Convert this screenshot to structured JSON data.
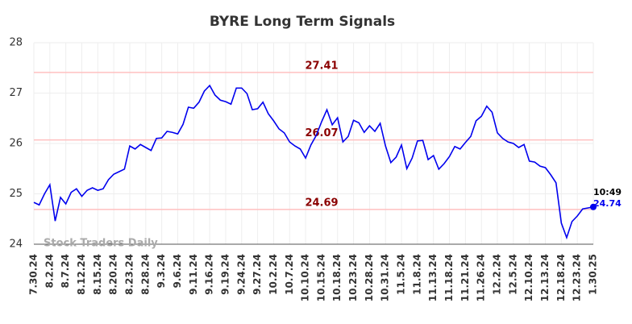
{
  "chart_data": {
    "type": "line",
    "title": "BYRE Long Term Signals",
    "categories": [
      "7.30.24",
      null,
      null,
      "8.2.24",
      null,
      null,
      "8.7.24",
      null,
      null,
      "8.12.24",
      null,
      null,
      "8.15.24",
      null,
      null,
      "8.20.24",
      null,
      null,
      "8.23.24",
      null,
      null,
      "8.28.24",
      null,
      null,
      "9.3.24",
      null,
      null,
      "9.6.24",
      null,
      null,
      "9.11.24",
      null,
      null,
      "9.16.24",
      null,
      null,
      "9.19.24",
      null,
      null,
      "9.24.24",
      null,
      null,
      "9.27.24",
      null,
      null,
      "10.2.24",
      null,
      null,
      "10.7.24",
      null,
      null,
      "10.10.24",
      null,
      null,
      "10.15.24",
      null,
      null,
      "10.18.24",
      null,
      null,
      "10.23.24",
      null,
      null,
      "10.28.24",
      null,
      null,
      "10.31.24",
      null,
      null,
      "11.5.24",
      null,
      null,
      "11.8.24",
      null,
      null,
      "11.13.24",
      null,
      null,
      "11.18.24",
      null,
      null,
      "11.21.24",
      null,
      null,
      "11.26.24",
      null,
      null,
      "12.2.24",
      null,
      null,
      "12.5.24",
      null,
      null,
      "12.10.24",
      null,
      null,
      "12.13.24",
      null,
      null,
      "12.18.24",
      null,
      null,
      "12.23.24",
      null,
      null,
      "1.30.25"
    ],
    "series": [
      {
        "color": "#0000ee",
        "values": [
          24.83,
          24.78,
          25.0,
          25.18,
          24.46,
          24.93,
          24.8,
          25.03,
          25.1,
          24.95,
          25.07,
          25.12,
          25.07,
          25.1,
          25.28,
          25.39,
          25.44,
          25.49,
          25.95,
          25.89,
          25.98,
          25.92,
          25.86,
          26.1,
          26.11,
          26.24,
          26.22,
          26.19,
          26.38,
          26.72,
          26.7,
          26.82,
          27.04,
          27.15,
          26.96,
          26.86,
          26.83,
          26.78,
          27.1,
          27.1,
          26.99,
          26.67,
          26.69,
          26.82,
          26.59,
          26.45,
          26.29,
          26.21,
          26.03,
          25.95,
          25.89,
          25.71,
          25.97,
          26.16,
          26.43,
          26.67,
          26.37,
          26.51,
          26.03,
          26.14,
          26.46,
          26.41,
          26.22,
          26.35,
          26.24,
          26.4,
          25.95,
          25.62,
          25.73,
          25.97,
          25.5,
          25.71,
          26.05,
          26.06,
          25.68,
          25.76,
          25.49,
          25.6,
          25.74,
          25.94,
          25.89,
          26.02,
          26.14,
          26.45,
          26.54,
          26.74,
          26.62,
          26.21,
          26.1,
          26.03,
          26.0,
          25.92,
          25.98,
          25.65,
          25.63,
          25.55,
          25.52,
          25.38,
          25.22,
          24.42,
          24.13,
          24.45,
          24.56,
          24.7,
          24.72,
          24.74
        ]
      }
    ],
    "ylim": [
      24,
      28
    ],
    "yticks": [
      24,
      25,
      26,
      27,
      28
    ],
    "grid": true,
    "reference_lines": [
      {
        "value": 27.41,
        "label": "27.41"
      },
      {
        "value": 26.07,
        "label": "26.07"
      },
      {
        "value": 24.69,
        "label": "24.69"
      }
    ],
    "last_point": {
      "time": "10:49",
      "value_label": "24.74"
    },
    "watermark": "Stock Traders Daily"
  }
}
